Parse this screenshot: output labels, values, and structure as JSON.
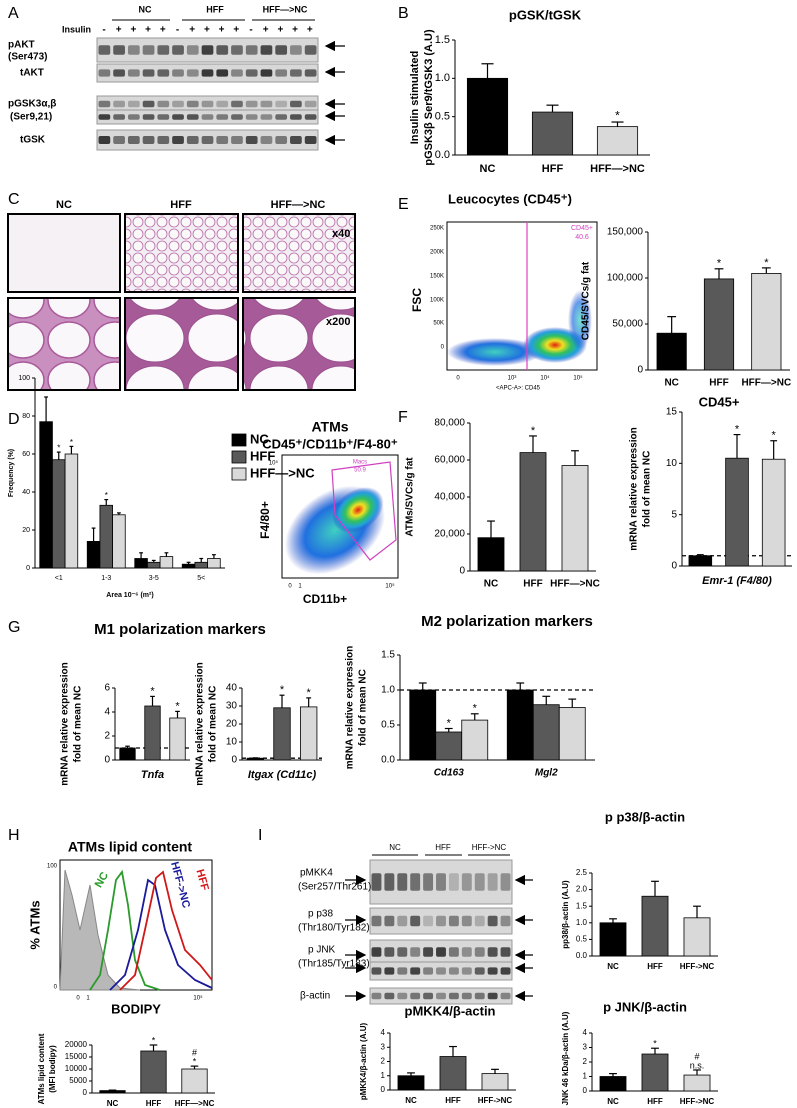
{
  "chart_data": [
    {
      "type": "bar",
      "title": "pGSK/tGSK",
      "ylabel": [
        "Insulin stimulated",
        "pGSK3β Ser9/tGSK3 (A.U)"
      ],
      "categories": [
        "NC",
        "HFF",
        "HFF—>NC"
      ],
      "values": [
        1.0,
        0.56,
        0.37
      ],
      "errors": [
        0.19,
        0.09,
        0.06
      ],
      "colors": [
        "#000000",
        "#595959",
        "#d9d9d9"
      ],
      "significance": [
        null,
        null,
        [
          "*"
        ]
      ],
      "ylim": [
        0,
        1.5
      ],
      "yticks": [
        {
          "value": 0,
          "label": "0.0"
        },
        {
          "value": 0.5,
          "label": "0.5"
        },
        {
          "value": 1,
          "label": "1.0"
        },
        {
          "value": 1.5,
          "label": "1.5"
        }
      ]
    },
    {
      "type": "bar",
      "ylabel": [
        "CD45/SVCs/g fat"
      ],
      "xlabel": "CD45+",
      "categories": [
        "NC",
        "HFF",
        "HFF—>NC"
      ],
      "values": [
        40000,
        99000,
        105000
      ],
      "errors": [
        18000,
        11000,
        6000
      ],
      "colors": [
        "#000000",
        "#595959",
        "#d9d9d9"
      ],
      "significance": [
        null,
        [
          "*"
        ],
        [
          "*"
        ]
      ],
      "ylim": [
        0,
        150000
      ],
      "yticks": [
        0,
        {
          "value": 50000,
          "label": "50,000"
        },
        {
          "value": 100000,
          "label": "100,000"
        },
        {
          "value": 150000,
          "label": "150,000"
        }
      ]
    },
    {
      "type": "bar",
      "ylabel": [
        "Frequency (%)"
      ],
      "xlabel": "Area 10⁻⁶ (m²)",
      "categories": [
        "<1",
        "1-3",
        "3-5",
        "5<"
      ],
      "legend": "right",
      "series": [
        {
          "name": "NC",
          "color": "#000000",
          "values": [
            77,
            14,
            5,
            2
          ],
          "errors": [
            13,
            7,
            3,
            1
          ]
        },
        {
          "name": "HFF",
          "color": "#595959",
          "values": [
            57,
            33,
            3,
            3
          ],
          "errors": [
            4,
            3,
            1,
            2
          ],
          "significance": [
            [
              "*"
            ],
            [
              "*"
            ],
            null,
            null
          ]
        },
        {
          "name": "HFF—>NC",
          "color": "#d9d9d9",
          "values": [
            60,
            28,
            6,
            5
          ],
          "errors": [
            4,
            1,
            2,
            2
          ],
          "significance": [
            [
              "*"
            ],
            null,
            null,
            null
          ]
        }
      ],
      "ylim": [
        0,
        100
      ],
      "yticks": [
        0,
        20,
        40,
        60,
        80,
        100
      ]
    },
    {
      "type": "bar",
      "ylabel": [
        "ATMs/SVCs/g fat"
      ],
      "categories": [
        "NC",
        "HFF",
        "HFF—>NC"
      ],
      "values": [
        18000,
        64000,
        57000
      ],
      "errors": [
        9000,
        9000,
        8000
      ],
      "colors": [
        "#000000",
        "#595959",
        "#d9d9d9"
      ],
      "significance": [
        null,
        [
          "*"
        ],
        null
      ],
      "ylim": [
        0,
        80000
      ],
      "yticks": [
        0,
        {
          "value": 20000,
          "label": "20,000"
        },
        {
          "value": 40000,
          "label": "40,000"
        },
        {
          "value": 60000,
          "label": "60,000"
        },
        {
          "value": 80000,
          "label": "80,000"
        }
      ]
    },
    {
      "type": "bar",
      "ylabel": [
        "mRNA relative expression",
        "fold of mean NC"
      ],
      "xlabel": "Emr-1 (F4/80)",
      "values": [
        1,
        10.5,
        10.4
      ],
      "errors": [
        0.1,
        2.3,
        1.8
      ],
      "colors": [
        "#000000",
        "#595959",
        "#d9d9d9"
      ],
      "significance": [
        null,
        [
          "*"
        ],
        [
          "*"
        ]
      ],
      "reference_line": 1,
      "ylim": [
        0,
        15
      ],
      "yticks": [
        0,
        5,
        10,
        15
      ]
    },
    {
      "type": "bar",
      "ylabel": [
        "mRNA relative expression",
        "fold of mean NC"
      ],
      "xlabel": "Tnfa",
      "values": [
        1,
        4.5,
        3.5
      ],
      "errors": [
        0.15,
        0.8,
        0.55
      ],
      "colors": [
        "#000000",
        "#595959",
        "#d9d9d9"
      ],
      "significance": [
        null,
        [
          "*"
        ],
        [
          "*"
        ]
      ],
      "reference_line": 1,
      "ylim": [
        0,
        6
      ],
      "yticks": [
        0,
        2,
        4,
        6
      ]
    },
    {
      "type": "bar",
      "ylabel": [
        "mRNA relative expression",
        "fold of mean NC"
      ],
      "xlabel": "Itgax (Cd11c)",
      "values": [
        1,
        29,
        29.5
      ],
      "errors": [
        0.2,
        7,
        5
      ],
      "colors": [
        "#000000",
        "#595959",
        "#d9d9d9"
      ],
      "significance": [
        null,
        [
          "*"
        ],
        [
          "*"
        ]
      ],
      "reference_line": 1,
      "ylim": [
        0,
        40
      ],
      "yticks": [
        0,
        10,
        20,
        30,
        40
      ]
    },
    {
      "type": "bar",
      "title": "M2 polarization markers",
      "ylabel": [
        "mRNA relative expression",
        "fold of mean NC"
      ],
      "categories": [
        "Cd163",
        "Mgl2"
      ],
      "series": [
        {
          "name": "NC",
          "color": "#000000",
          "values": [
            1,
            1
          ],
          "errors": [
            0.1,
            0.1
          ]
        },
        {
          "name": "HFF",
          "color": "#595959",
          "values": [
            0.4,
            0.79
          ],
          "errors": [
            0.05,
            0.12
          ],
          "significance": [
            [
              "*"
            ],
            null
          ]
        },
        {
          "name": "HFF—>NC",
          "color": "#d9d9d9",
          "values": [
            0.57,
            0.75
          ],
          "errors": [
            0.09,
            0.12
          ],
          "significance": [
            [
              "*"
            ],
            null
          ]
        }
      ],
      "reference_line": 1,
      "ylim": [
        0,
        1.5
      ],
      "yticks": [
        {
          "value": 0,
          "label": "0.0"
        },
        {
          "value": 0.5,
          "label": "0.5"
        },
        {
          "value": 1,
          "label": "1.0"
        },
        {
          "value": 1.5,
          "label": "1.5"
        }
      ]
    },
    {
      "type": "bar",
      "ylabel": [
        "ATMs lipid content",
        "(MFI bodipy)"
      ],
      "categories": [
        "NC",
        "HFF",
        "HFF—>NC"
      ],
      "values": [
        1000,
        17500,
        10000
      ],
      "errors": [
        200,
        2500,
        1200
      ],
      "colors": [
        "#000000",
        "#595959",
        "#d9d9d9"
      ],
      "significance": [
        null,
        [
          "*"
        ],
        [
          "#",
          "*"
        ]
      ],
      "ylim": [
        0,
        20000
      ],
      "yticks": [
        0,
        5000,
        10000,
        15000,
        20000
      ]
    },
    {
      "type": "bar",
      "title": "p p38/β-actin",
      "ylabel": [
        "pp38/β-actin (A.U)"
      ],
      "categories": [
        "NC",
        "HFF",
        "HFF->NC"
      ],
      "values": [
        1,
        1.8,
        1.15
      ],
      "errors": [
        0.12,
        0.45,
        0.35
      ],
      "colors": [
        "#000000",
        "#595959",
        "#d9d9d9"
      ],
      "ylim": [
        0,
        2.5
      ],
      "yticks": [
        {
          "value": 0,
          "label": "0.0"
        },
        {
          "value": 0.5,
          "label": "0.5"
        },
        {
          "value": 1,
          "label": "1.0"
        },
        {
          "value": 1.5,
          "label": "1.5"
        },
        {
          "value": 2,
          "label": "2.0"
        },
        {
          "value": 2.5,
          "label": "2.5"
        }
      ]
    },
    {
      "type": "bar",
      "title": "pMKK4/β-actin",
      "ylabel": [
        "pMKK4/β-actin (A.U)"
      ],
      "categories": [
        "NC",
        "HFF",
        "HFF->NC"
      ],
      "values": [
        1,
        2.35,
        1.15
      ],
      "errors": [
        0.2,
        0.7,
        0.3
      ],
      "colors": [
        "#000000",
        "#595959",
        "#d9d9d9"
      ],
      "ylim": [
        0,
        4
      ],
      "yticks": [
        0,
        1,
        2,
        3,
        4
      ]
    },
    {
      "type": "bar",
      "title": "p JNK/β-actin",
      "ylabel": [
        "p JNK 46 kDa/β-actin (A.U)"
      ],
      "categories": [
        "NC",
        "HFF",
        "HFF->NC"
      ],
      "values": [
        1,
        2.55,
        1.1
      ],
      "errors": [
        0.2,
        0.4,
        0.35
      ],
      "colors": [
        "#000000",
        "#595959",
        "#d9d9d9"
      ],
      "significance": [
        null,
        [
          "*"
        ],
        [
          "#",
          "n.s."
        ]
      ],
      "ylim": [
        0,
        4
      ],
      "yticks": [
        0,
        1,
        2,
        3,
        4
      ]
    }
  ],
  "figure": {
    "panels": [
      "A",
      "B",
      "C",
      "D",
      "E",
      "F",
      "G",
      "H",
      "I"
    ],
    "blot_a": {
      "groups": [
        "NC",
        "HFF",
        "HFF—>NC"
      ],
      "insulin": "Insulin",
      "lanes": [
        "-",
        "+",
        "+",
        "+",
        "+",
        "-",
        "+",
        "+",
        "+",
        "+",
        "-",
        "+",
        "+",
        "+",
        "+"
      ],
      "rows": [
        "pAKT",
        "(Ser473)",
        "tAKT",
        "pGSK3α,β",
        "(Ser9,21)",
        "tGSK"
      ]
    },
    "micrographs": {
      "columns": [
        "NC",
        "HFF",
        "HFF—>NC"
      ],
      "magnifications": [
        "x40",
        "x200"
      ]
    },
    "flow_e": {
      "title": "Leucocytes (CD45⁺)",
      "ylabel": "FSC",
      "yticks": [
        "250K",
        "200K",
        "150K",
        "100K",
        "50K",
        "0"
      ],
      "xticks": [
        "0",
        "10³",
        "10⁴",
        "10⁵"
      ],
      "xlabel": "<APC-A>: CD45",
      "gate": "CD45+",
      "gate_value": 40.6
    },
    "flow_f": {
      "title": "ATMs",
      "subtitle": "CD45⁺/CD11b⁺/F4-80⁺",
      "ylabel": "F4/80+",
      "xlabel": "CD11b+",
      "yticks": [
        "10⁵"
      ],
      "xticks": [
        "0",
        "1",
        "10⁵"
      ],
      "gate": "Macs",
      "gate_value": 50.9
    },
    "g_title": "M1 polarization markers",
    "hist_h": {
      "title": "ATMs lipid content",
      "ylabel": "% ATMs",
      "xlabel": "BODIPY",
      "curves": [
        "NC",
        "HFF->NC",
        "HFF"
      ],
      "yticks": [
        "100",
        "0"
      ],
      "xticks": [
        "0",
        "1",
        "10⁵"
      ]
    },
    "blot_i": {
      "groups": [
        "NC",
        "HFF",
        "HFF->NC"
      ],
      "rows": [
        "pMKK4",
        "(Ser257/Thr261)",
        "p p38",
        "(Thr180/Tyr182)",
        "p JNK",
        "(Thr185/Tyr183)",
        "β-actin"
      ]
    }
  }
}
